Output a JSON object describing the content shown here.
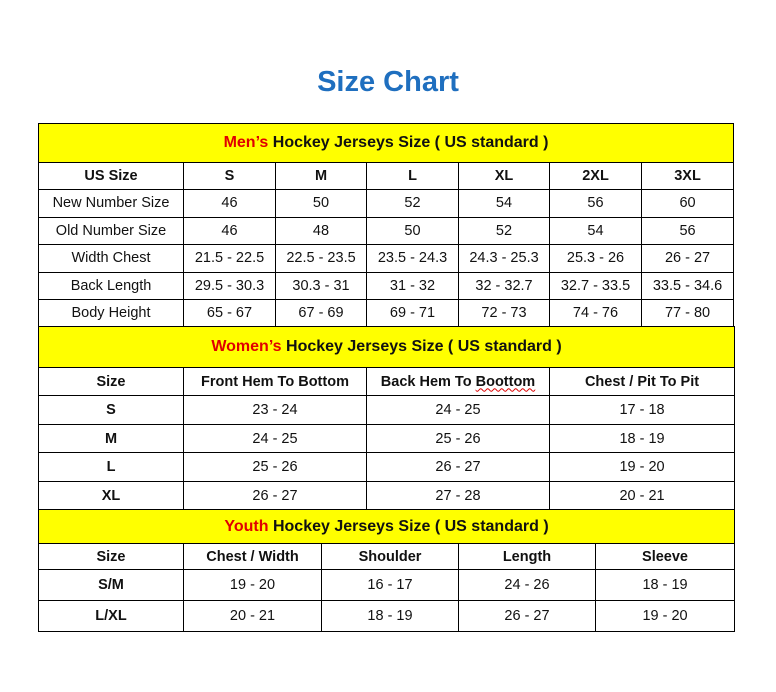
{
  "title": "Size Chart",
  "colors": {
    "title": "#1f6fbf",
    "band_background": "#ffff00",
    "highlight": "#e00000"
  },
  "men": {
    "band_highlight": "Men’s",
    "band_rest": " Hockey Jerseys Size ( US standard )",
    "headers": [
      "US Size",
      "S",
      "M",
      "L",
      "XL",
      "2XL",
      "3XL"
    ],
    "rows": [
      [
        "New Number Size",
        "46",
        "50",
        "52",
        "54",
        "56",
        "60"
      ],
      [
        "Old Number Size",
        "46",
        "48",
        "50",
        "52",
        "54",
        "56"
      ],
      [
        "Width Chest",
        "21.5 - 22.5",
        "22.5 - 23.5",
        "23.5 - 24.3",
        "24.3 - 25.3",
        "25.3 - 26",
        "26 - 27"
      ],
      [
        "Back Length",
        "29.5 - 30.3",
        "30.3 - 31",
        "31 - 32",
        "32 - 32.7",
        "32.7 - 33.5",
        "33.5 - 34.6"
      ],
      [
        "Body Height",
        "65 - 67",
        "67 - 69",
        "69 - 71",
        "72 - 73",
        "74 - 76",
        "77 - 80"
      ]
    ]
  },
  "women": {
    "band_highlight": "Women’s",
    "band_rest": " Hockey Jerseys Size ( US standard )",
    "headers": [
      "Size",
      "Front Hem To Bottom",
      "Back Hem To Boottom",
      "Chest / Pit To Pit"
    ],
    "rows": [
      [
        "S",
        "23 - 24",
        "24 - 25",
        "17 - 18"
      ],
      [
        "M",
        "24 - 25",
        "25 - 26",
        "18 - 19"
      ],
      [
        "L",
        "25 - 26",
        "26 - 27",
        "19 - 20"
      ],
      [
        "XL",
        "26 - 27",
        "27 - 28",
        "20 - 21"
      ]
    ]
  },
  "youth": {
    "band_highlight": "Youth",
    "band_rest": " Hockey Jerseys Size ( US standard )",
    "headers": [
      "Size",
      "Chest / Width",
      "Shoulder",
      "Length",
      "Sleeve"
    ],
    "rows": [
      [
        "S/M",
        "19 - 20",
        "16 - 17",
        "24 - 26",
        "18 - 19"
      ],
      [
        "L/XL",
        "20 - 21",
        "18 - 19",
        "26 - 27",
        "19 - 20"
      ]
    ]
  }
}
